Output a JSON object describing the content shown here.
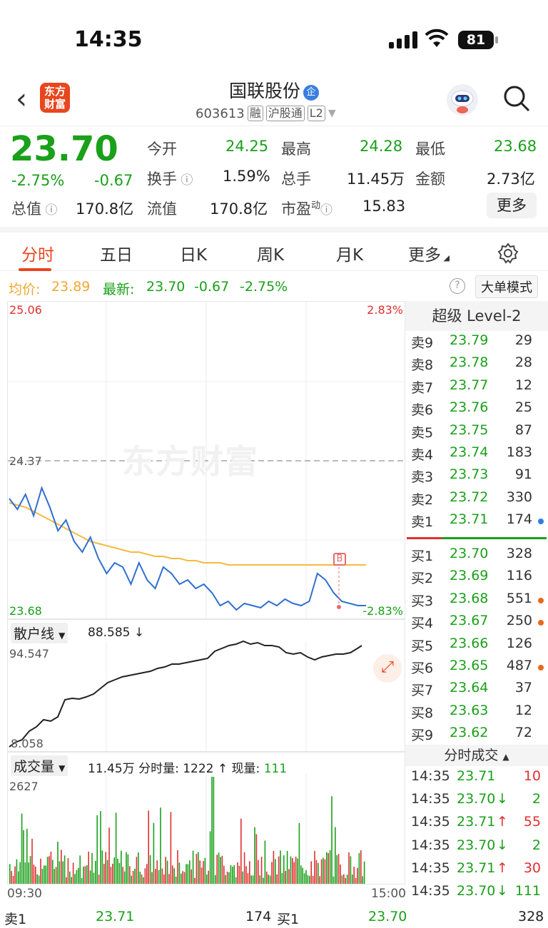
{
  "status": {
    "time": "14:35",
    "battery": "81"
  },
  "header": {
    "name": "国联股份",
    "qi": "企",
    "code": "603613",
    "tags": [
      "融",
      "沪股通",
      "L2"
    ],
    "logo_line1": "东方",
    "logo_line2": "财富"
  },
  "quote": {
    "price": "23.70",
    "pct": "-2.75%",
    "chg": "-0.67",
    "open_l": "今开",
    "open": "24.25",
    "high_l": "最高",
    "high": "24.28",
    "low_l": "最低",
    "low": "23.68",
    "turn_l": "换手",
    "turn": "1.59%",
    "vol_l": "总手",
    "vol": "11.45万",
    "amt_l": "金额",
    "amt": "2.73亿",
    "mcap_l": "总值",
    "mcap": "170.8亿",
    "fmcap_l": "流值",
    "fmcap": "170.8亿",
    "pe_l": "市盈",
    "pe_sup": "动",
    "pe": "15.83",
    "more": "更多"
  },
  "tabs": [
    "分时",
    "五日",
    "日K",
    "周K",
    "月K",
    "更多"
  ],
  "info": {
    "avg_l": "均价:",
    "avg": "23.89",
    "last_l": "最新:",
    "last": "23.70",
    "chg": "-0.67",
    "pct": "-2.75%",
    "mode": "大单模式"
  },
  "chart": {
    "top_price": "25.06",
    "top_pct": "2.83%",
    "prev_close": "24.37",
    "bottom_price": "23.68",
    "bottom_pct": "-2.83%",
    "watermark": "东方财富",
    "marker": "B"
  },
  "retail": {
    "select": "散户线",
    "value": "88.585 ↓",
    "max": "94.547",
    "min": "8.058"
  },
  "volume": {
    "select": "成交量",
    "total": "11.45万",
    "min_l": "分时量:",
    "min_v": "1222 ↑",
    "cur_l": "现量:",
    "cur_v": "111",
    "max": "2627",
    "t_start": "09:30",
    "t_end": "15:00"
  },
  "chart_data": {
    "type": "line",
    "series": [
      {
        "name": "最新",
        "values": [
          24.2,
          24.15,
          24.22,
          24.12,
          24.25,
          24.16,
          24.05,
          24.1,
          24.0,
          23.95,
          24.02,
          23.92,
          23.85,
          23.9,
          23.88,
          23.8,
          23.9,
          23.82,
          23.78,
          23.88,
          23.85,
          23.8,
          23.82,
          23.78,
          23.8,
          23.76,
          23.7,
          23.72,
          23.68,
          23.71,
          23.7,
          23.69,
          23.72,
          23.7,
          23.73,
          23.71,
          23.7,
          23.72,
          23.85,
          23.82,
          23.76,
          23.72,
          23.71,
          23.7,
          23.7
        ]
      },
      {
        "name": "均价",
        "values": [
          24.18,
          24.17,
          24.16,
          24.14,
          24.12,
          24.1,
          24.08,
          24.06,
          24.04,
          24.02,
          24.0,
          23.99,
          23.98,
          23.97,
          23.96,
          23.95,
          23.95,
          23.94,
          23.93,
          23.93,
          23.92,
          23.92,
          23.91,
          23.91,
          23.9,
          23.9,
          23.9,
          23.89,
          23.89,
          23.89,
          23.89,
          23.89,
          23.89,
          23.89,
          23.89,
          23.89,
          23.89,
          23.89,
          23.89,
          23.89,
          23.89,
          23.89,
          23.89,
          23.89,
          23.89
        ]
      }
    ],
    "ylim": [
      23.68,
      25.06
    ]
  },
  "orderbook": {
    "title": "超级 Level-2",
    "asks": [
      [
        "卖9",
        "23.79",
        "29",
        ""
      ],
      [
        "卖8",
        "23.78",
        "28",
        ""
      ],
      [
        "卖7",
        "23.77",
        "12",
        ""
      ],
      [
        "卖6",
        "23.76",
        "25",
        ""
      ],
      [
        "卖5",
        "23.75",
        "87",
        ""
      ],
      [
        "卖4",
        "23.74",
        "183",
        ""
      ],
      [
        "卖3",
        "23.73",
        "91",
        ""
      ],
      [
        "卖2",
        "23.72",
        "330",
        ""
      ],
      [
        "卖1",
        "23.71",
        "174",
        "#2f7de0"
      ]
    ],
    "bids": [
      [
        "买1",
        "23.70",
        "328",
        ""
      ],
      [
        "买2",
        "23.69",
        "116",
        ""
      ],
      [
        "买3",
        "23.68",
        "551",
        "#e86a1e"
      ],
      [
        "买4",
        "23.67",
        "250",
        "#e86a1e"
      ],
      [
        "买5",
        "23.66",
        "126",
        ""
      ],
      [
        "买6",
        "23.65",
        "487",
        "#e86a1e"
      ],
      [
        "买7",
        "23.64",
        "37",
        ""
      ],
      [
        "买8",
        "23.63",
        "12",
        ""
      ],
      [
        "买9",
        "23.62",
        "72",
        ""
      ]
    ]
  },
  "ticks": {
    "title": "分时成交",
    "rows": [
      [
        "14:35",
        "23.71",
        "",
        "10",
        "r"
      ],
      [
        "14:35",
        "23.70",
        "↓",
        "2",
        "g"
      ],
      [
        "14:35",
        "23.71",
        "↑",
        "55",
        "r"
      ],
      [
        "14:35",
        "23.70",
        "↓",
        "2",
        "g"
      ],
      [
        "14:35",
        "23.71",
        "↑",
        "30",
        "r"
      ],
      [
        "14:35",
        "23.70",
        "↓",
        "111",
        "g"
      ]
    ]
  },
  "bottom": {
    "ask_l": "卖1",
    "ask_p": "23.71",
    "ask_v": "174",
    "bid_l": "买1",
    "bid_p": "23.70",
    "bid_v": "328"
  },
  "colors": {
    "up": "#e03030",
    "down": "#1aa01a",
    "accent": "#e8461e",
    "price_line": "#2f6fd0",
    "avg_line": "#f5b942"
  }
}
